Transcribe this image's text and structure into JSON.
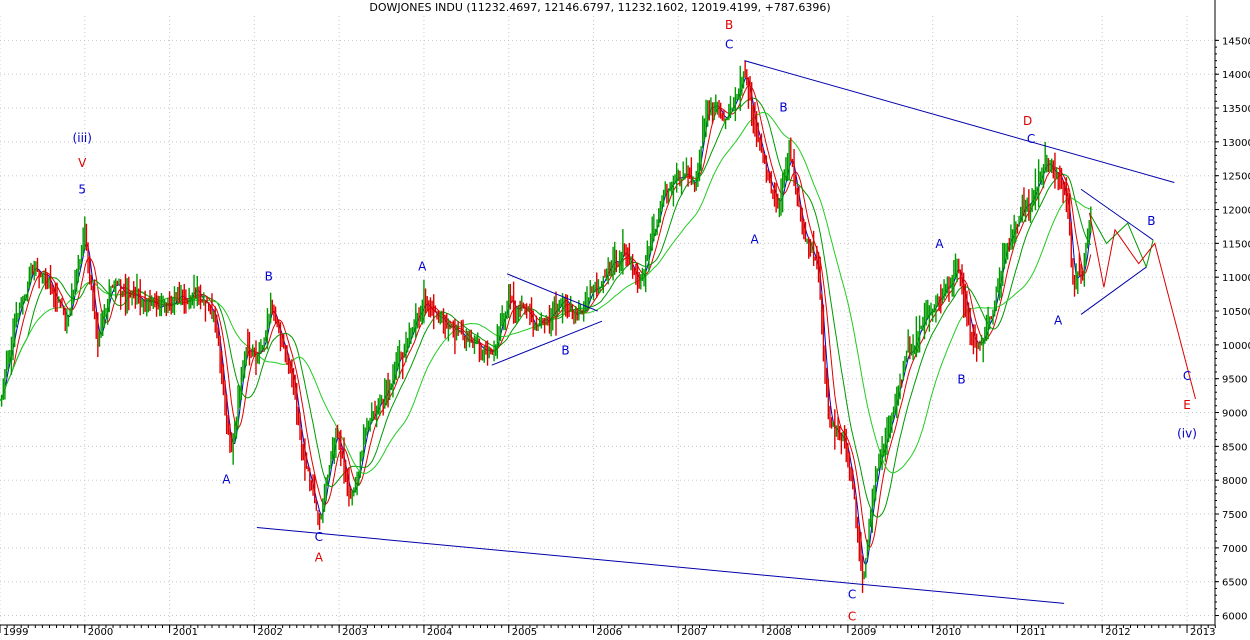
{
  "chart_data": {
    "type": "bar",
    "title": "DOWJONES INDU (11232.4697, 12146.6797, 11232.1602, 12019.4199, +787.6396)",
    "y_ticks": [
      6000,
      6500,
      7000,
      7500,
      8000,
      8500,
      9000,
      9500,
      10000,
      10500,
      11000,
      11500,
      12000,
      12500,
      13000,
      13500,
      14000,
      14500
    ],
    "ylim": [
      5860,
      14860
    ],
    "xlim": [
      1999.0,
      2013.33
    ],
    "x_ticks": [
      {
        "label": "1999",
        "x": 1999.0
      },
      {
        "label": "2000",
        "x": 2000.0
      },
      {
        "label": "2001",
        "x": 2001.0
      },
      {
        "label": "2002",
        "x": 2002.0
      },
      {
        "label": "2003",
        "x": 2003.0
      },
      {
        "label": "2004",
        "x": 2004.0
      },
      {
        "label": "2005",
        "x": 2005.0
      },
      {
        "label": "2006",
        "x": 2006.0
      },
      {
        "label": "2007",
        "x": 2007.0
      },
      {
        "label": "2008",
        "x": 2008.0
      },
      {
        "label": "2009",
        "x": 2009.0
      },
      {
        "label": "2010",
        "x": 2010.0
      },
      {
        "label": "2011",
        "x": 2011.0
      },
      {
        "label": "2012",
        "x": 2012.0
      },
      {
        "label": "2013",
        "x": 2013.0
      }
    ],
    "price_anchors": [
      [
        1999.0,
        9150
      ],
      [
        1999.25,
        10600
      ],
      [
        1999.4,
        11150
      ],
      [
        1999.6,
        10900
      ],
      [
        1999.8,
        10300
      ],
      [
        2000.0,
        11650
      ],
      [
        2000.15,
        10100
      ],
      [
        2000.3,
        10900
      ],
      [
        2000.6,
        10700
      ],
      [
        2000.9,
        10500
      ],
      [
        2001.1,
        10700
      ],
      [
        2001.4,
        10700
      ],
      [
        2001.55,
        10300
      ],
      [
        2001.72,
        8400
      ],
      [
        2001.9,
        9900
      ],
      [
        2002.05,
        9900
      ],
      [
        2002.2,
        10600
      ],
      [
        2002.45,
        9500
      ],
      [
        2002.58,
        8300
      ],
      [
        2002.78,
        7450
      ],
      [
        2002.95,
        8700
      ],
      [
        2003.15,
        7700
      ],
      [
        2003.3,
        8600
      ],
      [
        2003.6,
        9400
      ],
      [
        2003.9,
        10300
      ],
      [
        2004.05,
        10650
      ],
      [
        2004.3,
        10300
      ],
      [
        2004.6,
        10000
      ],
      [
        2004.82,
        9800
      ],
      [
        2005.0,
        10750
      ],
      [
        2005.3,
        10200
      ],
      [
        2005.6,
        10600
      ],
      [
        2005.85,
        10450
      ],
      [
        2006.0,
        10900
      ],
      [
        2006.35,
        11400
      ],
      [
        2006.55,
        11000
      ],
      [
        2006.85,
        12300
      ],
      [
        2007.0,
        12500
      ],
      [
        2007.2,
        12400
      ],
      [
        2007.35,
        13500
      ],
      [
        2007.55,
        13300
      ],
      [
        2007.78,
        14050
      ],
      [
        2007.92,
        13200
      ],
      [
        2008.05,
        12400
      ],
      [
        2008.2,
        12100
      ],
      [
        2008.32,
        12800
      ],
      [
        2008.5,
        11600
      ],
      [
        2008.65,
        11200
      ],
      [
        2008.78,
        8800
      ],
      [
        2008.95,
        8600
      ],
      [
        2009.05,
        8000
      ],
      [
        2009.18,
        6600
      ],
      [
        2009.35,
        8200
      ],
      [
        2009.5,
        8800
      ],
      [
        2009.7,
        9800
      ],
      [
        2009.9,
        10400
      ],
      [
        2010.15,
        10800
      ],
      [
        2010.3,
        11100
      ],
      [
        2010.45,
        10100
      ],
      [
        2010.55,
        9900
      ],
      [
        2010.7,
        10400
      ],
      [
        2010.85,
        11300
      ],
      [
        2011.0,
        11800
      ],
      [
        2011.15,
        12100
      ],
      [
        2011.33,
        12750
      ],
      [
        2011.5,
        12400
      ],
      [
        2011.6,
        12100
      ],
      [
        2011.65,
        10900
      ],
      [
        2011.72,
        11000
      ],
      [
        2011.77,
        10900
      ],
      [
        2011.87,
        12000
      ]
    ],
    "moving_averages": [
      {
        "color": "#0000cc",
        "period": 20
      },
      {
        "color": "#dd0000",
        "period": 45
      },
      {
        "color": "#009900",
        "period": 90
      },
      {
        "color": "#22cc22",
        "period": 200
      }
    ],
    "trendlines": [
      {
        "x1": 2002.03,
        "y1": 7300,
        "x2": 2011.55,
        "y2": 6180,
        "color": "#0000aa"
      },
      {
        "x1": 2007.78,
        "y1": 14200,
        "x2": 2012.85,
        "y2": 12400,
        "color": "#0000aa"
      },
      {
        "x1": 2004.8,
        "y1": 9700,
        "x2": 2006.1,
        "y2": 10350,
        "color": "#0000aa"
      },
      {
        "x1": 2004.98,
        "y1": 11050,
        "x2": 2006.05,
        "y2": 10500,
        "color": "#0000aa"
      },
      {
        "x1": 2011.75,
        "y1": 12300,
        "x2": 2012.6,
        "y2": 11550,
        "color": "#0000aa"
      },
      {
        "x1": 2011.75,
        "y1": 10450,
        "x2": 2012.52,
        "y2": 11150,
        "color": "#0000aa"
      }
    ],
    "projection_green": [
      [
        2011.85,
        11950
      ],
      [
        2012.05,
        11500
      ],
      [
        2012.3,
        11800
      ],
      [
        2012.52,
        11150
      ],
      [
        2012.6,
        11550
      ]
    ],
    "projection_red": [
      [
        2011.85,
        11950
      ],
      [
        2012.02,
        10850
      ],
      [
        2012.15,
        11700
      ],
      [
        2012.43,
        11200
      ],
      [
        2012.62,
        11500
      ],
      [
        2013.1,
        9200
      ]
    ],
    "wave_labels": [
      {
        "text": "(iii)",
        "x": 1999.97,
        "y": 13000,
        "color": "#0000cc"
      },
      {
        "text": "V",
        "x": 1999.97,
        "y": 12630,
        "color": "#dd0000"
      },
      {
        "text": "5",
        "x": 1999.97,
        "y": 12240,
        "color": "#0000cc"
      },
      {
        "text": "A",
        "x": 2001.67,
        "y": 7950,
        "color": "#0000cc"
      },
      {
        "text": "B",
        "x": 2002.17,
        "y": 10950,
        "color": "#0000cc"
      },
      {
        "text": "C",
        "x": 2002.76,
        "y": 7100,
        "color": "#0000cc"
      },
      {
        "text": "A",
        "x": 2002.76,
        "y": 6800,
        "color": "#dd0000"
      },
      {
        "text": "A",
        "x": 2003.98,
        "y": 11100,
        "color": "#0000cc"
      },
      {
        "text": "B",
        "x": 2005.67,
        "y": 9860,
        "color": "#0000cc"
      },
      {
        "text": "B",
        "x": 2007.6,
        "y": 14670,
        "color": "#dd0000"
      },
      {
        "text": "C",
        "x": 2007.6,
        "y": 14380,
        "color": "#0000cc"
      },
      {
        "text": "B",
        "x": 2008.24,
        "y": 13450,
        "color": "#0000cc"
      },
      {
        "text": "A",
        "x": 2007.9,
        "y": 11500,
        "color": "#0000cc"
      },
      {
        "text": "C",
        "x": 2009.05,
        "y": 6250,
        "color": "#0000cc"
      },
      {
        "text": "C",
        "x": 2009.05,
        "y": 5930,
        "color": "#dd0000"
      },
      {
        "text": "A",
        "x": 2010.08,
        "y": 11430,
        "color": "#0000cc"
      },
      {
        "text": "B",
        "x": 2010.34,
        "y": 9430,
        "color": "#0000cc"
      },
      {
        "text": "D",
        "x": 2011.12,
        "y": 13250,
        "color": "#dd0000"
      },
      {
        "text": "C",
        "x": 2011.16,
        "y": 12980,
        "color": "#0000cc"
      },
      {
        "text": "A",
        "x": 2011.48,
        "y": 10300,
        "color": "#0000cc"
      },
      {
        "text": "B",
        "x": 2012.58,
        "y": 11770,
        "color": "#0000cc"
      },
      {
        "text": "C",
        "x": 2013.0,
        "y": 9480,
        "color": "#0000cc"
      },
      {
        "text": "E",
        "x": 2013.0,
        "y": 9050,
        "color": "#dd0000"
      },
      {
        "text": "(iv)",
        "x": 2013.0,
        "y": 8630,
        "color": "#0000cc"
      }
    ],
    "colors": {
      "up_bar": "#009900",
      "down_bar": "#dd0000",
      "grid": "#c8c8c8"
    }
  }
}
